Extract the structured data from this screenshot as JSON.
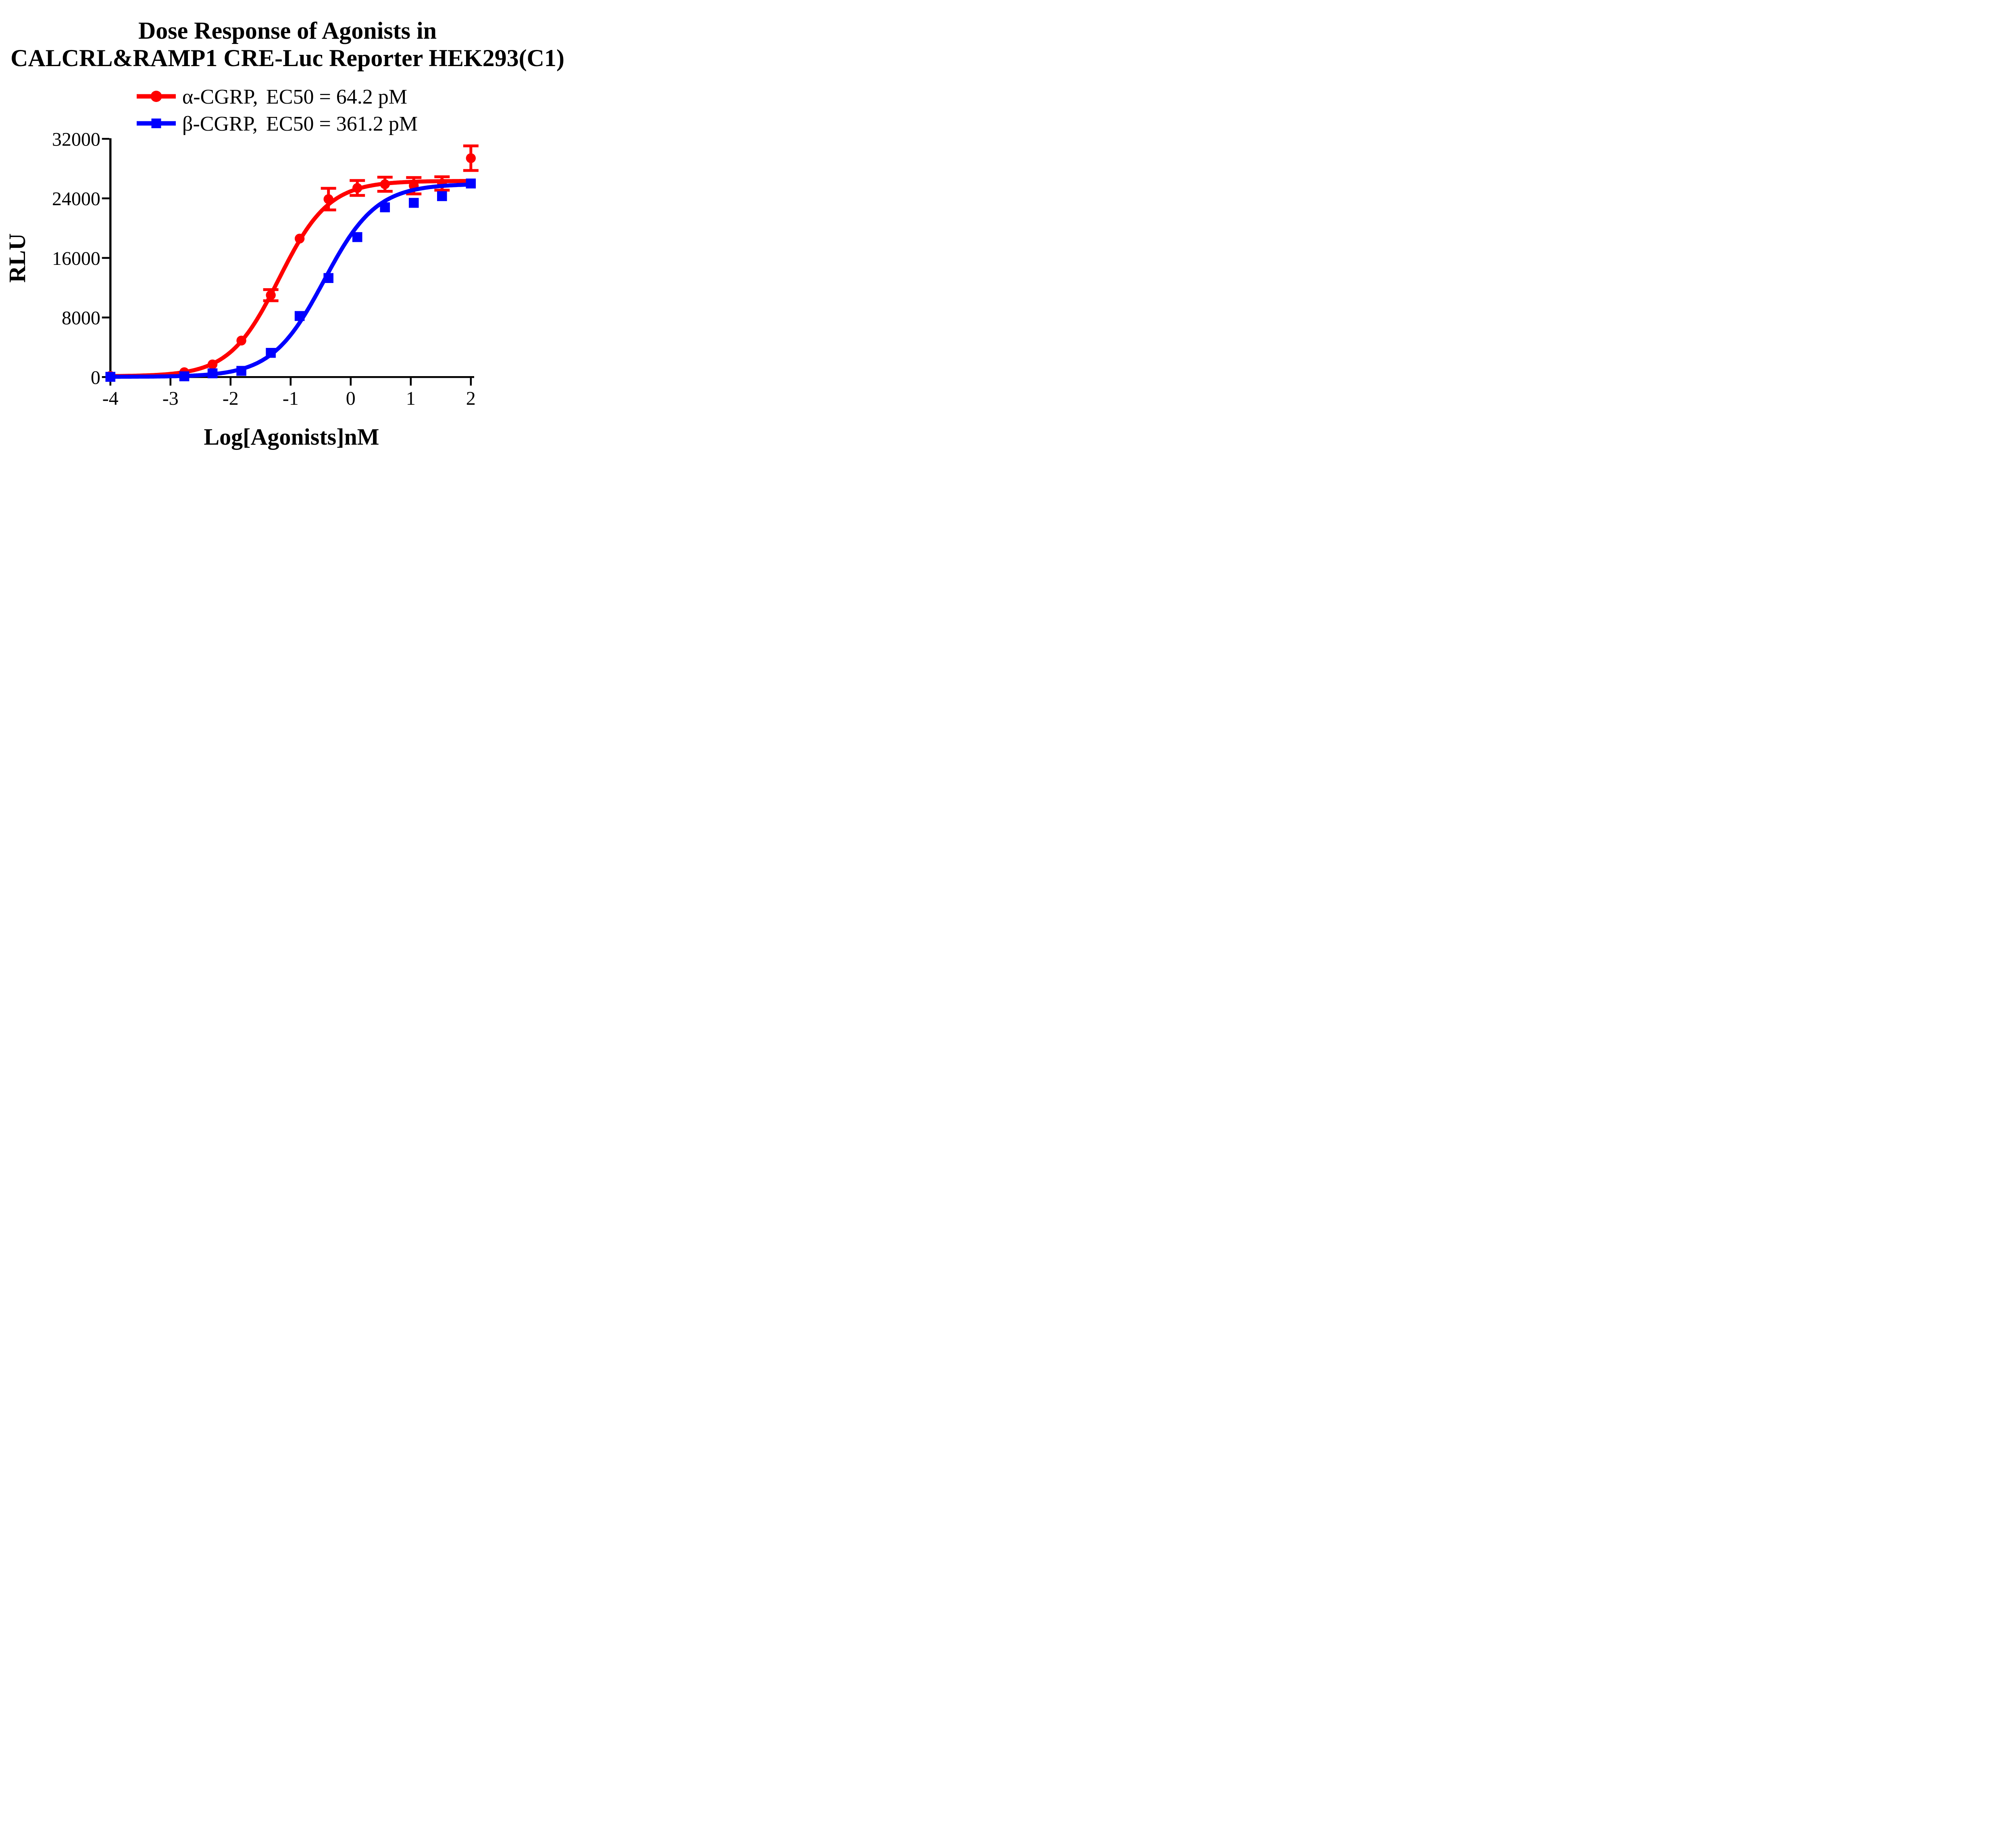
{
  "title": {
    "line1": "Dose Response of Agonists in",
    "line2": "CALCRL&RAMP1 CRE-Luc Reporter HEK293(C1)"
  },
  "legend": [
    {
      "label": "α-CGRP,",
      "ec50_text": "EC50 = 64.2 pM",
      "color": "#FF0000",
      "marker": "circle"
    },
    {
      "label": "β-CGRP,",
      "ec50_text": "EC50 = 361.2 pM",
      "color": "#0000FF",
      "marker": "square"
    }
  ],
  "chart_data": {
    "type": "scatter",
    "title": "Dose Response of Agonists in CALCRL&RAMP1 CRE-Luc Reporter HEK293(C1)",
    "xlabel": "Log[Agonists]nM",
    "ylabel": "RLU",
    "xlim": [
      -4,
      2
    ],
    "ylim": [
      0,
      32000
    ],
    "x_ticks": [
      -4,
      -3,
      -2,
      -1,
      0,
      1,
      2
    ],
    "y_ticks": [
      0,
      8000,
      16000,
      24000,
      32000
    ],
    "grid": false,
    "legend_position": "top-center",
    "series": [
      {
        "name": "α-CGRP",
        "ec50_label": "EC50 = 64.2 pM",
        "ec50_pM": 64.2,
        "color": "#FF0000",
        "marker": "circle",
        "x": [
          -4,
          -2.77,
          -2.3,
          -1.82,
          -1.33,
          -0.85,
          -0.37,
          0.11,
          0.57,
          1.05,
          1.52,
          2.0
        ],
        "y": [
          150,
          650,
          1700,
          4900,
          11000,
          18600,
          23900,
          25400,
          25900,
          25700,
          26000,
          29400
        ],
        "yerr": [
          0,
          0,
          0,
          0,
          750,
          0,
          1450,
          1000,
          950,
          1100,
          900,
          1650
        ],
        "fit": {
          "model": "sigmoid",
          "bottom": 100,
          "top": 26350,
          "logEC50": -1.192,
          "hill": 1.05
        }
      },
      {
        "name": "β-CGRP",
        "ec50_label": "EC50 = 361.2 pM",
        "ec50_pM": 361.2,
        "color": "#0000FF",
        "marker": "square",
        "x": [
          -4,
          -2.77,
          -2.3,
          -1.82,
          -1.33,
          -0.85,
          -0.37,
          0.11,
          0.57,
          1.05,
          1.52,
          2.0
        ],
        "y": [
          30,
          100,
          500,
          830,
          3250,
          8200,
          13300,
          18800,
          22800,
          23400,
          24300,
          26000
        ],
        "yerr": [
          0,
          0,
          0,
          0,
          0,
          0,
          0,
          0,
          0,
          0,
          0,
          0
        ],
        "fit": {
          "model": "sigmoid",
          "bottom": 30,
          "top": 25950,
          "logEC50": -0.442,
          "hill": 1.0
        }
      }
    ]
  }
}
